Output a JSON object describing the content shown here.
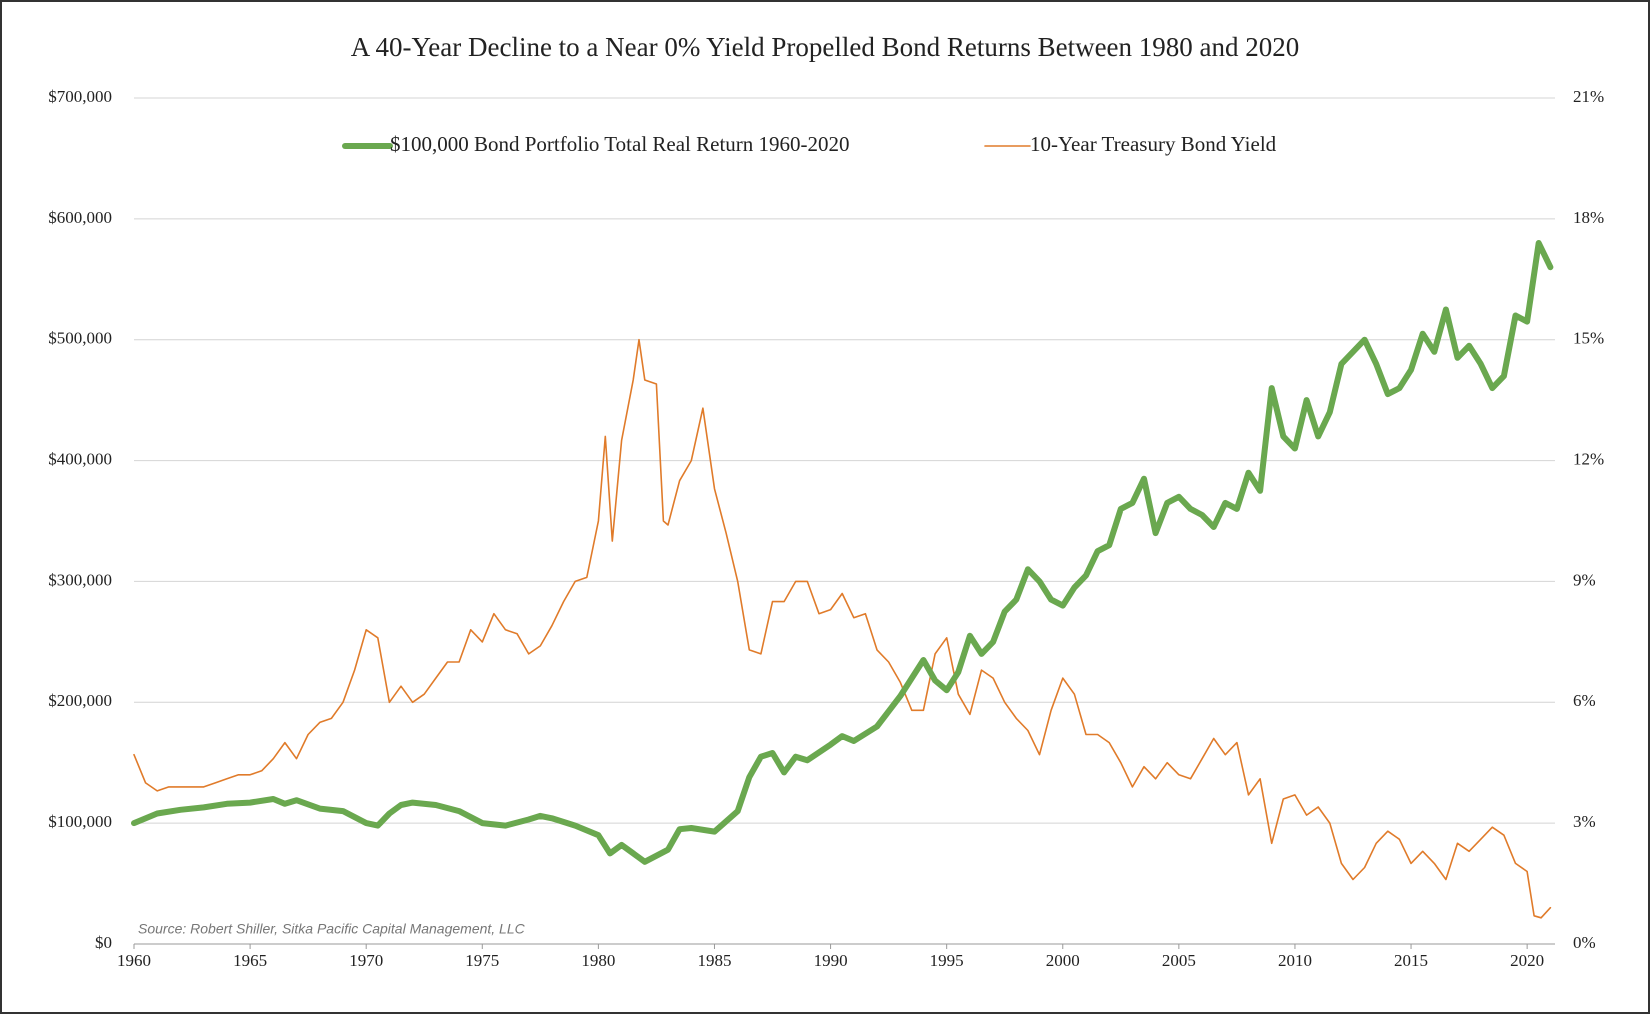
{
  "chart_data": {
    "type": "line",
    "title": "A 40-Year Decline to a Near 0% Yield Propelled Bond Returns Between 1980 and 2020",
    "source": "Source: Robert Shiller, Sitka Pacific Capital Management, LLC",
    "xlim": [
      1960,
      2021.2
    ],
    "xticks": [
      1960,
      1965,
      1970,
      1975,
      1980,
      1985,
      1990,
      1995,
      2000,
      2005,
      2010,
      2015,
      2020
    ],
    "ylim": [
      0,
      700000
    ],
    "yticks": [
      {
        "value": 0,
        "label": "$0"
      },
      {
        "value": 100000,
        "label": "$100,000"
      },
      {
        "value": 200000,
        "label": "$200,000"
      },
      {
        "value": 300000,
        "label": "$300,000"
      },
      {
        "value": 400000,
        "label": "$400,000"
      },
      {
        "value": 500000,
        "label": "$500,000"
      },
      {
        "value": 600000,
        "label": "$600,000"
      },
      {
        "value": 700000,
        "label": "$700,000"
      }
    ],
    "y2lim": [
      0,
      21
    ],
    "y2ticks": [
      {
        "value": 0,
        "label": "0%"
      },
      {
        "value": 3,
        "label": "3%"
      },
      {
        "value": 6,
        "label": "6%"
      },
      {
        "value": 9,
        "label": "9%"
      },
      {
        "value": 12,
        "label": "12%"
      },
      {
        "value": 15,
        "label": "15%"
      },
      {
        "value": 18,
        "label": "18%"
      },
      {
        "value": 21,
        "label": "21%"
      }
    ],
    "grid": true,
    "series": [
      {
        "name": "$100,000 Bond Portfolio Total Real Return 1960-2020",
        "color": "#6aa84f",
        "axis": "y",
        "x": [
          1960,
          1961,
          1962,
          1963,
          1964,
          1965,
          1966,
          1966.5,
          1967,
          1968,
          1969,
          1970,
          1970.5,
          1971,
          1971.5,
          1972,
          1973,
          1974,
          1975,
          1976,
          1977,
          1977.5,
          1978,
          1979,
          1980,
          1980.5,
          1981,
          1982,
          1983,
          1983.5,
          1984,
          1985,
          1986,
          1986.5,
          1987,
          1987.5,
          1988,
          1988.5,
          1989,
          1990,
          1990.5,
          1991,
          1992,
          1993,
          1994,
          1994.5,
          1995,
          1995.5,
          1996,
          1996.5,
          1997,
          1997.5,
          1998,
          1998.5,
          1999,
          1999.5,
          2000,
          2000.5,
          2001,
          2001.5,
          2002,
          2002.5,
          2003,
          2003.5,
          2004,
          2004.5,
          2005,
          2005.5,
          2006,
          2006.5,
          2007,
          2007.5,
          2008,
          2008.5,
          2009,
          2009.5,
          2010,
          2010.5,
          2011,
          2011.5,
          2012,
          2012.5,
          2013,
          2013.5,
          2014,
          2014.5,
          2015,
          2015.5,
          2016,
          2016.5,
          2017,
          2017.5,
          2018,
          2018.5,
          2019,
          2019.5,
          2020,
          2020.5,
          2021
        ],
        "values": [
          100000,
          108000,
          111000,
          113000,
          116000,
          117000,
          120000,
          116000,
          119000,
          112000,
          110000,
          100000,
          98000,
          108000,
          115000,
          117000,
          115000,
          110000,
          100000,
          98000,
          103000,
          106000,
          104000,
          98000,
          90000,
          75000,
          82000,
          68000,
          78000,
          95000,
          96000,
          93000,
          110000,
          138000,
          155000,
          158000,
          142000,
          155000,
          152000,
          165000,
          172000,
          168000,
          180000,
          205000,
          235000,
          218000,
          210000,
          225000,
          255000,
          240000,
          250000,
          275000,
          285000,
          310000,
          300000,
          285000,
          280000,
          295000,
          305000,
          325000,
          330000,
          360000,
          365000,
          385000,
          340000,
          365000,
          370000,
          360000,
          355000,
          345000,
          365000,
          360000,
          390000,
          375000,
          460000,
          420000,
          410000,
          450000,
          420000,
          440000,
          480000,
          490000,
          500000,
          480000,
          455000,
          460000,
          475000,
          505000,
          490000,
          525000,
          485000,
          495000,
          480000,
          460000,
          470000,
          520000,
          515000,
          580000,
          560000
        ]
      },
      {
        "name": "10-Year Treasury Bond Yield",
        "color": "#e07b2a",
        "axis": "y2",
        "x": [
          1960,
          1960.5,
          1961,
          1961.5,
          1962,
          1962.5,
          1963,
          1963.5,
          1964,
          1964.5,
          1965,
          1965.5,
          1966,
          1966.5,
          1967,
          1967.5,
          1968,
          1968.5,
          1969,
          1969.5,
          1970,
          1970.5,
          1971,
          1971.5,
          1972,
          1972.5,
          1973,
          1973.5,
          1974,
          1974.5,
          1975,
          1975.5,
          1976,
          1976.5,
          1977,
          1977.5,
          1978,
          1978.5,
          1979,
          1979.5,
          1980,
          1980.3,
          1980.6,
          1981,
          1981.5,
          1981.75,
          1982,
          1982.5,
          1982.8,
          1983,
          1983.5,
          1984,
          1984.5,
          1985,
          1985.5,
          1986,
          1986.5,
          1987,
          1987.5,
          1988,
          1988.5,
          1989,
          1989.5,
          1990,
          1990.5,
          1991,
          1991.5,
          1992,
          1992.5,
          1993,
          1993.5,
          1994,
          1994.5,
          1995,
          1995.5,
          1996,
          1996.5,
          1997,
          1997.5,
          1998,
          1998.5,
          1999,
          1999.5,
          2000,
          2000.5,
          2001,
          2001.5,
          2002,
          2002.5,
          2003,
          2003.5,
          2004,
          2004.5,
          2005,
          2005.5,
          2006,
          2006.5,
          2007,
          2007.5,
          2008,
          2008.5,
          2009,
          2009.5,
          2010,
          2010.5,
          2011,
          2011.5,
          2012,
          2012.5,
          2013,
          2013.5,
          2014,
          2014.5,
          2015,
          2015.5,
          2016,
          2016.5,
          2017,
          2017.5,
          2018,
          2018.5,
          2019,
          2019.5,
          2020,
          2020.3,
          2020.6,
          2021
        ],
        "values": [
          4.7,
          4.0,
          3.8,
          3.9,
          3.9,
          3.9,
          3.9,
          4.0,
          4.1,
          4.2,
          4.2,
          4.3,
          4.6,
          5.0,
          4.6,
          5.2,
          5.5,
          5.6,
          6.0,
          6.8,
          7.8,
          7.6,
          6.0,
          6.4,
          6.0,
          6.2,
          6.6,
          7.0,
          7.0,
          7.8,
          7.5,
          8.2,
          7.8,
          7.7,
          7.2,
          7.4,
          7.9,
          8.5,
          9.0,
          9.1,
          10.5,
          12.6,
          10.0,
          12.5,
          14.0,
          15.0,
          14.0,
          13.9,
          10.5,
          10.4,
          11.5,
          12.0,
          13.3,
          11.3,
          10.2,
          9.0,
          7.3,
          7.2,
          8.5,
          8.5,
          9.0,
          9.0,
          8.2,
          8.3,
          8.7,
          8.1,
          8.2,
          7.3,
          7.0,
          6.5,
          5.8,
          5.8,
          7.2,
          7.6,
          6.2,
          5.7,
          6.8,
          6.6,
          6.0,
          5.6,
          5.3,
          4.7,
          5.8,
          6.6,
          6.2,
          5.2,
          5.2,
          5.0,
          4.5,
          3.9,
          4.4,
          4.1,
          4.5,
          4.2,
          4.1,
          4.6,
          5.1,
          4.7,
          5.0,
          3.7,
          4.1,
          2.5,
          3.6,
          3.7,
          3.2,
          3.4,
          3.0,
          2.0,
          1.6,
          1.9,
          2.5,
          2.8,
          2.6,
          2.0,
          2.3,
          2.0,
          1.6,
          2.5,
          2.3,
          2.6,
          2.9,
          2.7,
          2.0,
          1.8,
          0.7,
          0.65,
          0.9
        ]
      }
    ]
  }
}
